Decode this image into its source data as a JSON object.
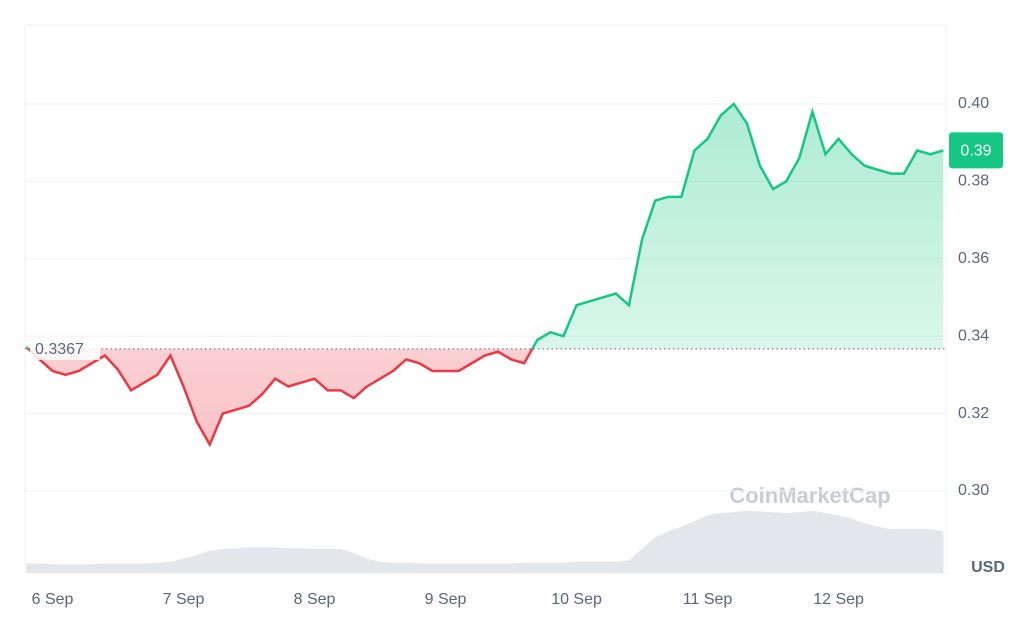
{
  "chart_data": {
    "type": "line",
    "series": [
      {
        "up_color": "#16c784",
        "down_color": "#ea3943",
        "x": [
          5.8,
          5.9,
          6.0,
          6.1,
          6.2,
          6.3,
          6.4,
          6.5,
          6.6,
          6.7,
          6.8,
          6.9,
          7.0,
          7.1,
          7.2,
          7.3,
          7.4,
          7.5,
          7.6,
          7.7,
          7.8,
          7.9,
          8.0,
          8.1,
          8.2,
          8.3,
          8.4,
          8.5,
          8.6,
          8.7,
          8.8,
          8.9,
          9.0,
          9.1,
          9.2,
          9.3,
          9.4,
          9.5,
          9.6,
          9.7,
          9.8,
          9.9,
          10.0,
          10.1,
          10.2,
          10.3,
          10.4,
          10.5,
          10.6,
          10.7,
          10.8,
          10.9,
          11.0,
          11.1,
          11.2,
          11.3,
          11.4,
          11.5,
          11.6,
          11.7,
          11.8,
          11.9,
          12.0,
          12.1,
          12.2,
          12.3,
          12.4,
          12.5,
          12.6,
          12.7,
          12.8
        ],
        "values": [
          0.3372,
          0.334,
          0.331,
          0.33,
          0.331,
          0.333,
          0.335,
          0.3313,
          0.326,
          0.328,
          0.33,
          0.335,
          0.327,
          0.318,
          0.312,
          0.32,
          0.321,
          0.322,
          0.325,
          0.329,
          0.327,
          0.328,
          0.329,
          0.326,
          0.326,
          0.324,
          0.327,
          0.329,
          0.331,
          0.334,
          0.333,
          0.331,
          0.331,
          0.331,
          0.333,
          0.335,
          0.336,
          0.334,
          0.333,
          0.339,
          0.341,
          0.34,
          0.348,
          0.349,
          0.35,
          0.351,
          0.348,
          0.365,
          0.375,
          0.376,
          0.376,
          0.388,
          0.391,
          0.397,
          0.4,
          0.395,
          0.384,
          0.378,
          0.38,
          0.386,
          0.398,
          0.387,
          0.391,
          0.387,
          0.384,
          0.383,
          0.382,
          0.382,
          0.388,
          0.387,
          0.388
        ]
      }
    ],
    "volume": {
      "color": "#e3e6eb",
      "ylim": [
        0,
        100
      ],
      "values": [
        12,
        12,
        11,
        11,
        11,
        11,
        12,
        12,
        12,
        12,
        13,
        14,
        18,
        22,
        28,
        30,
        31,
        32,
        32,
        32,
        31,
        31,
        30,
        30,
        30,
        25,
        18,
        14,
        13,
        13,
        12,
        12,
        12,
        12,
        12,
        12,
        12,
        12,
        13,
        13,
        13,
        13,
        14,
        14,
        14,
        14,
        16,
        30,
        45,
        52,
        58,
        65,
        72,
        75,
        76,
        78,
        77,
        76,
        75,
        76,
        78,
        75,
        72,
        68,
        62,
        58,
        55,
        55,
        55,
        55,
        52
      ]
    },
    "baseline": 0.3367,
    "current_price": {
      "value": 0.388,
      "label": "0.39"
    },
    "currency": "USD",
    "watermark": "CoinMarketCap",
    "xlim": [
      5.79,
      12.82
    ],
    "ylim": [
      0.2788,
      0.4204
    ],
    "xticks": [
      {
        "value": 6,
        "label": "6 Sep"
      },
      {
        "value": 7,
        "label": "7 Sep"
      },
      {
        "value": 8,
        "label": "8 Sep"
      },
      {
        "value": 9,
        "label": "9 Sep"
      },
      {
        "value": 10,
        "label": "10 Sep"
      },
      {
        "value": 11,
        "label": "11 Sep"
      },
      {
        "value": 12,
        "label": "12 Sep"
      }
    ],
    "yticks": [
      {
        "value": 0.3,
        "label": "0.30"
      },
      {
        "value": 0.32,
        "label": "0.32"
      },
      {
        "value": 0.34,
        "label": "0.34"
      },
      {
        "value": 0.36,
        "label": "0.36"
      },
      {
        "value": 0.38,
        "label": "0.38"
      },
      {
        "value": 0.4,
        "label": "0.40"
      }
    ],
    "grid": true
  }
}
